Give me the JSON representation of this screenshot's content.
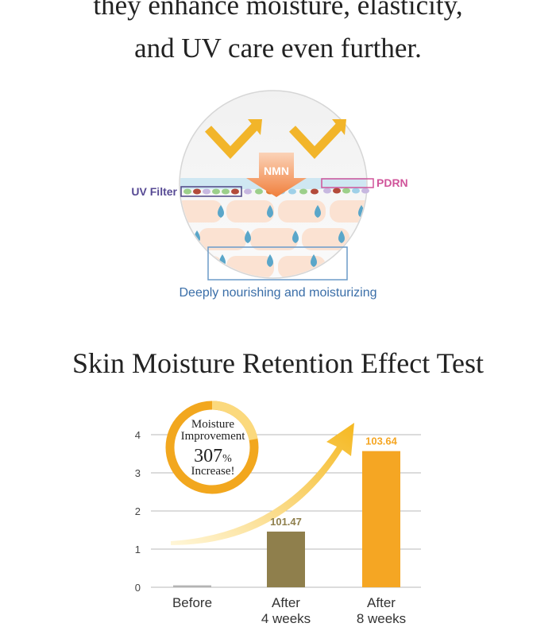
{
  "header": {
    "lines": [
      "they enhance moisture, elasticity,",
      "and UV care even further."
    ]
  },
  "diagram": {
    "arrow_label": "NMN",
    "left_label": "UV Filter",
    "right_label": "PDRN",
    "caption": "Deeply nourishing and moisturizing"
  },
  "chart_data": {
    "type": "bar",
    "title": "Skin Moisture Retention Effect Test",
    "categories": [
      "Before",
      "After\n4 weeks",
      "After\n8 weeks"
    ],
    "values": [
      0.05,
      1.46,
      3.57
    ],
    "annotations": [
      null,
      101.47,
      103.64
    ],
    "colors": [
      "#b3b3b3",
      "#8f7f4c",
      "#f5a623"
    ],
    "ylim": [
      0,
      4
    ],
    "yticks": [
      0,
      1,
      2,
      3,
      4
    ],
    "grid": true,
    "badge": {
      "line1": "Moisture",
      "line2": "Improvement",
      "value": 307,
      "unit": "%",
      "line3": "Increase!"
    }
  }
}
